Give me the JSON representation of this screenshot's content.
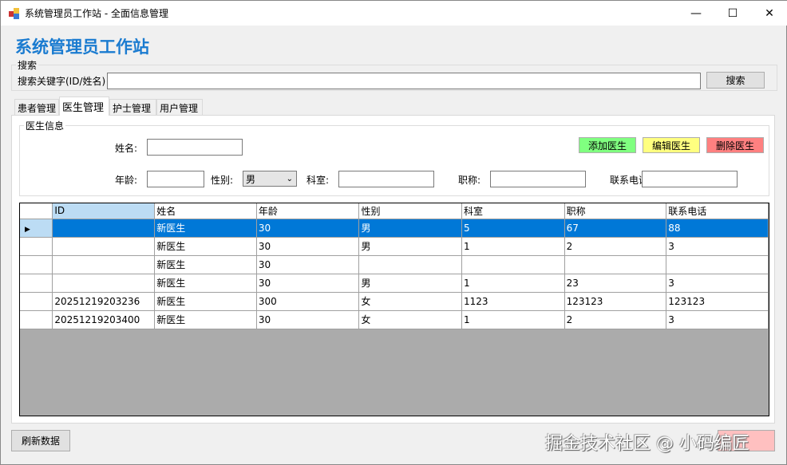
{
  "window": {
    "title": "系统管理员工作站 - 全面信息管理",
    "minimize": "—",
    "maximize": "☐",
    "close": "✕"
  },
  "header": {
    "title": "系统管理员工作站"
  },
  "search": {
    "group_label": "搜索",
    "label": "搜索关键字(ID/姓名)",
    "value": "",
    "button": "搜索"
  },
  "tabs": [
    {
      "label": "患者管理"
    },
    {
      "label": "医生管理",
      "active": true
    },
    {
      "label": "护士管理"
    },
    {
      "label": "用户管理"
    }
  ],
  "form": {
    "group_label": "医生信息",
    "name_label": "姓名:",
    "age_label": "年龄:",
    "gender_label": "性别:",
    "gender_value": "男",
    "dept_label": "科室:",
    "title_label": "职称:",
    "phone_label": "联系电话",
    "add": "添加医生",
    "edit": "编辑医生",
    "delete": "删除医生",
    "colors": {
      "add": "#80ff80",
      "edit": "#ffff80",
      "delete": "#ff8080"
    }
  },
  "table": {
    "columns": [
      "ID",
      "姓名",
      "年龄",
      "性别",
      "科室",
      "职称",
      "联系电话"
    ],
    "rows": [
      [
        "",
        "新医生",
        "30",
        "男",
        "5",
        "67",
        "88"
      ],
      [
        "",
        "新医生",
        "30",
        "男",
        "1",
        "2",
        "3"
      ],
      [
        "",
        "新医生",
        "30",
        "",
        "",
        "",
        ""
      ],
      [
        "",
        "新医生",
        "30",
        "男",
        "1",
        "23",
        "3"
      ],
      [
        "20251219203236",
        "新医生",
        "300",
        "女",
        "1123",
        "123123",
        "123123"
      ],
      [
        "20251219203400",
        "新医生",
        "30",
        "女",
        "1",
        "2",
        "3"
      ]
    ],
    "selected_row": 0
  },
  "footer": {
    "refresh": "刷新数据",
    "right_button": ""
  },
  "watermark": "掘金技术社区 @ 小码编匠"
}
